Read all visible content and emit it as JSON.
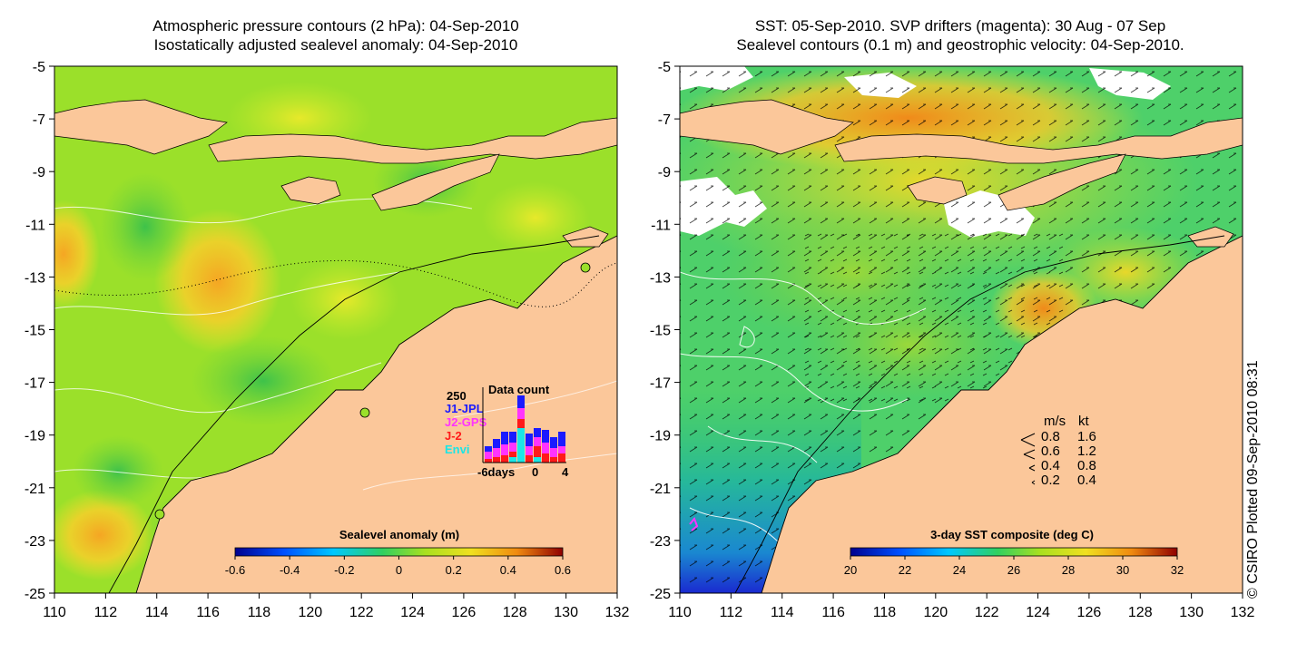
{
  "left_panel": {
    "title_line1": "Atmospheric pressure contours (2 hPa): 04-Sep-2010",
    "title_line2": "Isostatically adjusted sealevel anomaly: 04-Sep-2010",
    "colorbar": {
      "title": "Sealevel anomaly (m)",
      "ticks": [
        "-0.6",
        "-0.4",
        "-0.2",
        "0",
        "0.2",
        "0.4",
        "0.6"
      ]
    },
    "data_count": {
      "title": "Data count",
      "max_label": "250",
      "series": [
        {
          "name": "J1-JPL",
          "color": "#1a1aff"
        },
        {
          "name": "J2-GPS",
          "color": "#ff33ff"
        },
        {
          "name": "J-2",
          "color": "#ff1a1a"
        },
        {
          "name": "Envi",
          "color": "#1ae6e6"
        }
      ],
      "x_labels": [
        "-6days",
        "0",
        "4"
      ]
    }
  },
  "right_panel": {
    "title_line1": "SST: 05-Sep-2010. SVP drifters (magenta): 30 Aug - 07 Sep",
    "title_line2": "Sealevel contours (0.1 m) and geostrophic velocity: 04-Sep-2010.",
    "colorbar": {
      "title": "3-day SST composite (deg C)",
      "ticks": [
        "20",
        "22",
        "24",
        "26",
        "28",
        "30",
        "32"
      ]
    },
    "velocity_legend": {
      "header_ms": "m/s",
      "header_kt": "kt",
      "rows": [
        {
          "ms": "0.8",
          "kt": "1.6"
        },
        {
          "ms": "0.6",
          "kt": "1.2"
        },
        {
          "ms": "0.4",
          "kt": "0.8"
        },
        {
          "ms": "0.2",
          "kt": "0.4"
        }
      ]
    }
  },
  "axes": {
    "y_ticks": [
      "-5",
      "-7",
      "-9",
      "-11",
      "-13",
      "-15",
      "-17",
      "-19",
      "-21",
      "-23",
      "-25"
    ],
    "x_ticks": [
      "110",
      "112",
      "114",
      "116",
      "118",
      "120",
      "122",
      "124",
      "126",
      "128",
      "130",
      "132"
    ]
  },
  "credit": "© CSIRO Plotted 09-Sep-2010 08:31",
  "colors": {
    "land": "#fbc79a",
    "ocean_base_left": "#9be02a",
    "ocean_base_right": "#4ed06a"
  }
}
